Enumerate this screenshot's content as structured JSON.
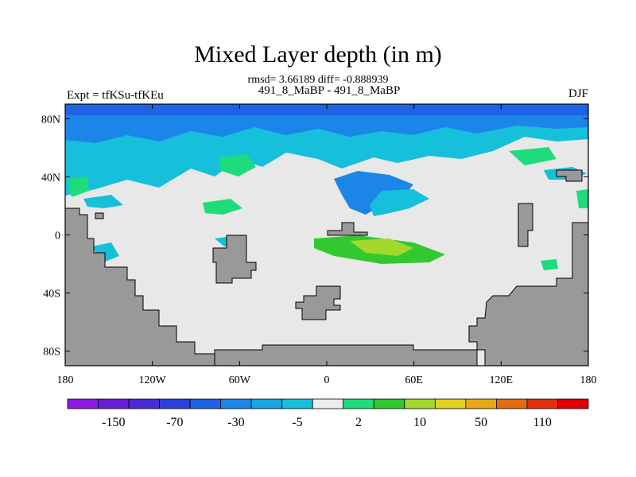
{
  "chart_data": {
    "type": "heatmap",
    "title": "Mixed Layer depth (in m)",
    "subtitle": "rmsd= 3.66189 diff= -0.888939",
    "center_string": "491_8_MaBP - 491_8_MaBP",
    "left_string": "Expt = tfKSu-tfKEu",
    "right_string": "DJF",
    "x_axis": {
      "range": [
        -180,
        180
      ],
      "ticks": [
        -180,
        -120,
        -60,
        0,
        60,
        120,
        180
      ],
      "tick_labels": [
        "180",
        "120W",
        "60W",
        "0",
        "60E",
        "120E",
        "180"
      ]
    },
    "y_axis": {
      "range": [
        -90,
        90
      ],
      "ticks": [
        80,
        40,
        0,
        -40,
        -80
      ],
      "tick_labels": [
        "80N",
        "40N",
        "0",
        "40S",
        "80S"
      ]
    },
    "colorbar": {
      "colors": [
        "#8c1ae6",
        "#6a1ed8",
        "#4a2ad8",
        "#2b3fdc",
        "#1e63e6",
        "#1b86e8",
        "#18a6e0",
        "#16bfda",
        "#ececec",
        "#1edc7c",
        "#33c82f",
        "#a3d92c",
        "#e0d21e",
        "#e6a916",
        "#e46c10",
        "#e0300e",
        "#e00000"
      ],
      "labels": [
        "-150",
        "-70",
        "-30",
        "-5",
        "2",
        "10",
        "50",
        "110"
      ]
    },
    "regions": [
      {
        "kind": "ocean",
        "level": "-3"
      },
      {
        "kind": "ocean",
        "level": "-15"
      },
      {
        "kind": "ocean",
        "level": "-15"
      },
      {
        "kind": "ocean",
        "level": "-30"
      },
      {
        "kind": "ocean",
        "level": "-3"
      },
      {
        "kind": "ocean",
        "level": "-3"
      },
      {
        "kind": "ocean",
        "level": "-3"
      },
      {
        "kind": "ocean",
        "level": "5"
      },
      {
        "kind": "ocean",
        "level": "5"
      },
      {
        "kind": "ocean",
        "level": "5"
      },
      {
        "kind": "ocean",
        "level": "10"
      },
      {
        "kind": "ocean",
        "level": "-3"
      },
      {
        "kind": "ocean",
        "level": "-3"
      },
      {
        "kind": "ocean",
        "level": "5"
      },
      {
        "kind": "ocean",
        "level": "20"
      },
      {
        "kind": "ocean",
        "level": "-3"
      },
      {
        "kind": "ocean",
        "level": "5"
      },
      {
        "kind": "ocean",
        "level": "5"
      },
      {
        "kind": "land",
        "level": "missing"
      },
      {
        "kind": "land",
        "level": "missing"
      },
      {
        "kind": "land",
        "level": "missing"
      },
      {
        "kind": "land",
        "level": "missing"
      },
      {
        "kind": "land",
        "level": "missing"
      },
      {
        "kind": "land",
        "level": "missing"
      },
      {
        "kind": "land",
        "level": "missing"
      },
      {
        "kind": "land",
        "level": "missing"
      },
      {
        "kind": "land",
        "level": "missing"
      }
    ]
  }
}
